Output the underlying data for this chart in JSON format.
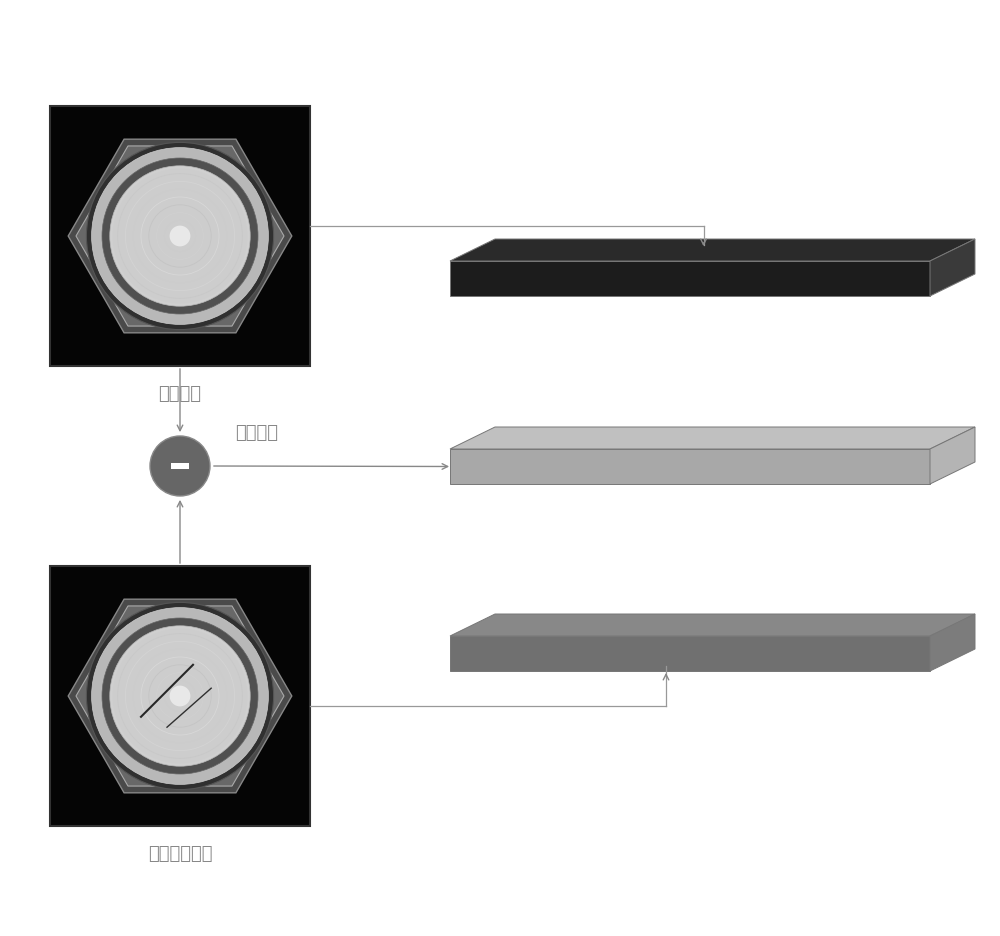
{
  "label_template": "模板图像",
  "label_rotated": "旋转矫正图像",
  "label_diff": "差値图像",
  "background_color": "#ffffff",
  "line_color": "#999999",
  "slab1_top": "#2a2a2a",
  "slab1_front": "#1c1c1c",
  "slab1_side": "#3a3a3a",
  "slab2_top": "#c0c0c0",
  "slab2_front": "#a8a8a8",
  "slab2_side": "#b4b4b4",
  "slab3_top": "#888888",
  "slab3_front": "#707070",
  "slab3_side": "#7c7c7c",
  "circle_color": "#666666",
  "text_color": "#888888",
  "font_size": 13,
  "arrow_color": "#888888"
}
